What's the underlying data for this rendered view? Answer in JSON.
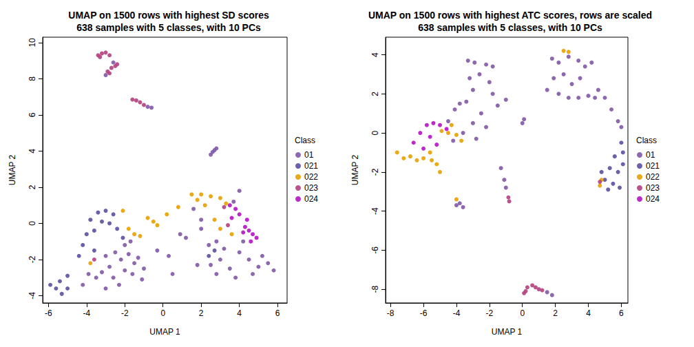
{
  "chart_data": [
    {
      "type": "scatter",
      "title": "UMAP on 1500 rows with highest SD scores\n638 samples with 5 classes, with 10 PCs",
      "x_label": "UMAP 1",
      "y_label": "UMAP 2",
      "legend_title": "Class",
      "legend": "right",
      "marker": "circle",
      "grid": false,
      "xlim": [
        -6.3,
        6.5
      ],
      "ylim": [
        -4.4,
        10.3
      ],
      "xticks": [
        -6,
        -4,
        -2,
        0,
        2,
        4,
        6
      ],
      "yticks": [
        -4,
        -2,
        0,
        2,
        4,
        6,
        8,
        10
      ],
      "series": [
        {
          "name": "01",
          "color": "#8258a6",
          "values": [
            [
              -2.6,
              8.9
            ],
            [
              -3.0,
              8.2
            ],
            [
              -0.8,
              6.45
            ],
            [
              -0.6,
              6.4
            ],
            [
              2.5,
              3.8
            ],
            [
              2.6,
              3.95
            ],
            [
              2.7,
              4.05
            ],
            [
              2.8,
              4.15
            ],
            [
              -3.0,
              -1.8
            ],
            [
              -2.5,
              -1.6
            ],
            [
              -2.2,
              -2.0
            ],
            [
              -1.8,
              -1.7
            ],
            [
              -1.5,
              -2.2
            ],
            [
              -2.8,
              -2.4
            ],
            [
              -3.2,
              -2.7
            ],
            [
              -2.6,
              -3.0
            ],
            [
              -2.0,
              -2.6
            ],
            [
              -1.3,
              -1.9
            ],
            [
              -2.3,
              -3.4
            ],
            [
              -3.0,
              -3.6
            ],
            [
              -3.5,
              -3.0
            ],
            [
              -1.6,
              -2.8
            ],
            [
              -1.0,
              -2.5
            ],
            [
              -4.2,
              -3.4
            ],
            [
              -3.9,
              -2.8
            ],
            [
              -2.0,
              -1.2
            ],
            [
              -1.7,
              -1.0
            ],
            [
              -1.1,
              -3.1
            ],
            [
              -0.3,
              -1.5
            ],
            [
              0.3,
              -1.8
            ],
            [
              0.9,
              -0.6
            ],
            [
              1.2,
              -0.8
            ],
            [
              1.8,
              -2.3
            ],
            [
              2.0,
              -0.3
            ],
            [
              2.4,
              -1.2
            ],
            [
              2.8,
              -1.0
            ],
            [
              3.2,
              -1.4
            ],
            [
              2.5,
              -2.3
            ],
            [
              2.8,
              -2.8
            ],
            [
              3.5,
              -2.5
            ],
            [
              4.0,
              -1.6
            ],
            [
              4.5,
              -2.0
            ],
            [
              5.0,
              -2.4
            ],
            [
              5.5,
              -2.2
            ],
            [
              5.8,
              -2.6
            ],
            [
              5.2,
              -1.8
            ],
            [
              4.7,
              -2.8
            ],
            [
              3.8,
              -3.0
            ],
            [
              3.0,
              -2.0
            ],
            [
              4.2,
              -1.0
            ],
            [
              2.0,
              0.2
            ],
            [
              1.6,
              0.8
            ],
            [
              3.7,
              1.2
            ],
            [
              4.0,
              1.8
            ],
            [
              0.5,
              -2.8
            ]
          ]
        },
        {
          "name": "021",
          "color": "#5b4fa0",
          "values": [
            [
              -3.4,
              0.6
            ],
            [
              -3.0,
              0.7
            ],
            [
              -2.6,
              0.5
            ],
            [
              -3.8,
              0.2
            ],
            [
              -3.2,
              0.1
            ],
            [
              -2.8,
              0.0
            ],
            [
              -4.0,
              -0.6
            ],
            [
              -3.6,
              -0.4
            ],
            [
              -4.2,
              -1.2
            ],
            [
              -4.4,
              -1.8
            ],
            [
              -3.6,
              -1.5
            ],
            [
              -5.0,
              -2.9
            ],
            [
              -5.4,
              -3.2
            ],
            [
              -5.6,
              -3.6
            ],
            [
              -5.9,
              -3.4
            ],
            [
              -5.3,
              -3.9
            ],
            [
              -5.0,
              -3.6
            ],
            [
              -2.4,
              -0.3
            ],
            [
              -2.1,
              -0.8
            ],
            [
              2.4,
              -1.8
            ],
            [
              2.7,
              -1.5
            ]
          ]
        },
        {
          "name": "022",
          "color": "#e8a000",
          "values": [
            [
              -2.1,
              0.7
            ],
            [
              -1.8,
              -0.3
            ],
            [
              -1.5,
              -0.6
            ],
            [
              -1.2,
              -0.7
            ],
            [
              -0.8,
              0.3
            ],
            [
              -0.5,
              0.1
            ],
            [
              -0.3,
              -0.1
            ],
            [
              0.2,
              0.5
            ],
            [
              0.8,
              0.9
            ],
            [
              1.5,
              1.6
            ],
            [
              2.0,
              1.6
            ],
            [
              2.5,
              1.5
            ],
            [
              3.0,
              1.4
            ],
            [
              3.3,
              1.1
            ],
            [
              2.2,
              1.0
            ],
            [
              2.7,
              0.2
            ],
            [
              3.0,
              -0.3
            ],
            [
              3.6,
              -0.6
            ],
            [
              1.8,
              1.3
            ],
            [
              -3.8,
              -2.2
            ]
          ]
        },
        {
          "name": "023",
          "color": "#b2407e",
          "values": [
            [
              -3.4,
              9.3
            ],
            [
              -3.2,
              9.4
            ],
            [
              -3.0,
              9.45
            ],
            [
              -2.8,
              9.3
            ],
            [
              -3.3,
              9.2
            ],
            [
              -2.4,
              8.8
            ],
            [
              -2.7,
              8.6
            ],
            [
              -2.9,
              8.4
            ],
            [
              -2.8,
              8.3
            ],
            [
              -2.5,
              8.7
            ],
            [
              -1.6,
              6.85
            ],
            [
              -1.4,
              6.8
            ],
            [
              -1.2,
              6.7
            ],
            [
              -1.0,
              6.55
            ],
            [
              3.2,
              0.9
            ],
            [
              3.4,
              -0.1
            ],
            [
              -3.6,
              -2.0
            ]
          ]
        },
        {
          "name": "024",
          "color": "#b514c4",
          "values": [
            [
              3.5,
              1.0
            ],
            [
              3.8,
              0.8
            ],
            [
              4.0,
              0.5
            ],
            [
              4.3,
              -0.2
            ],
            [
              4.5,
              -0.4
            ],
            [
              4.7,
              -0.6
            ],
            [
              4.9,
              -0.8
            ],
            [
              4.6,
              -1.0
            ],
            [
              4.2,
              -0.5
            ],
            [
              3.6,
              0.3
            ],
            [
              4.4,
              0.2
            ]
          ]
        }
      ]
    },
    {
      "type": "scatter",
      "title": "UMAP on 1500 rows with highest ATC scores, rows are scaled\n638 samples with 5 classes, with 10 PCs",
      "x_label": "UMAP 1",
      "y_label": "UMAP 2",
      "legend_title": "Class",
      "legend": "right",
      "marker": "circle",
      "grid": false,
      "xlim": [
        -8.3,
        6.4
      ],
      "ylim": [
        -8.7,
        4.9
      ],
      "xticks": [
        -8,
        -6,
        -4,
        -2,
        0,
        2,
        4,
        6
      ],
      "yticks": [
        -8,
        -6,
        -4,
        -2,
        0,
        2,
        4
      ],
      "series": [
        {
          "name": "01",
          "color": "#8258a6",
          "values": [
            [
              -3.3,
              3.7
            ],
            [
              -2.9,
              3.6
            ],
            [
              -2.2,
              3.5
            ],
            [
              -1.8,
              3.4
            ],
            [
              -2.6,
              3.0
            ],
            [
              -3.2,
              2.8
            ],
            [
              -2.0,
              2.6
            ],
            [
              -1.8,
              2.0
            ],
            [
              -3.0,
              2.2
            ],
            [
              -3.8,
              1.5
            ],
            [
              -4.1,
              1.2
            ],
            [
              -3.4,
              1.6
            ],
            [
              -2.5,
              1.0
            ],
            [
              -3.0,
              0.5
            ],
            [
              -2.2,
              0.3
            ],
            [
              -4.5,
              0.6
            ],
            [
              -3.6,
              0.0
            ],
            [
              -1.5,
              1.4
            ],
            [
              -1.0,
              1.7
            ],
            [
              -2.8,
              -0.3
            ],
            [
              -4.2,
              -0.4
            ],
            [
              1.8,
              3.8
            ],
            [
              2.2,
              3.6
            ],
            [
              2.8,
              3.9
            ],
            [
              3.4,
              3.7
            ],
            [
              3.8,
              3.4
            ],
            [
              4.2,
              3.6
            ],
            [
              1.9,
              2.8
            ],
            [
              2.5,
              3.0
            ],
            [
              3.0,
              2.5
            ],
            [
              3.5,
              2.8
            ],
            [
              2.2,
              2.0
            ],
            [
              2.8,
              1.8
            ],
            [
              3.4,
              1.8
            ],
            [
              4.0,
              1.9
            ],
            [
              4.6,
              2.2
            ],
            [
              5.0,
              1.8
            ],
            [
              5.4,
              1.2
            ],
            [
              5.8,
              0.6
            ],
            [
              6.0,
              0.3
            ],
            [
              1.5,
              2.2
            ],
            [
              4.4,
              1.8
            ],
            [
              -4.0,
              -3.7
            ],
            [
              -3.6,
              -3.8
            ],
            [
              -3.8,
              -3.6
            ],
            [
              -1.3,
              -1.8
            ],
            [
              -1.1,
              -2.4
            ],
            [
              -1.0,
              -2.8
            ],
            [
              0.0,
              0.5
            ],
            [
              0.1,
              0.7
            ],
            [
              1.5,
              -8.15
            ],
            [
              1.8,
              -8.3
            ]
          ]
        },
        {
          "name": "021",
          "color": "#5b4fa0",
          "values": [
            [
              6.0,
              -0.5
            ],
            [
              6.1,
              -1.0
            ],
            [
              5.6,
              -1.2
            ],
            [
              5.3,
              -1.8
            ],
            [
              5.8,
              -2.0
            ],
            [
              5.0,
              -2.4
            ],
            [
              5.5,
              -2.6
            ],
            [
              5.9,
              -2.8
            ],
            [
              5.2,
              -2.9
            ],
            [
              4.8,
              -2.0
            ],
            [
              6.1,
              -1.6
            ]
          ]
        },
        {
          "name": "022",
          "color": "#e8a000",
          "values": [
            [
              4.8,
              -2.4
            ],
            [
              4.7,
              -2.7
            ],
            [
              2.5,
              4.2
            ],
            [
              2.8,
              4.15
            ],
            [
              -7.6,
              -1.0
            ],
            [
              -7.2,
              -1.3
            ],
            [
              -6.8,
              -1.2
            ],
            [
              -6.4,
              -1.4
            ],
            [
              -6.0,
              -1.3
            ],
            [
              -5.6,
              -1.0
            ],
            [
              -5.2,
              -1.6
            ],
            [
              -5.0,
              -2.0
            ],
            [
              -4.9,
              0.1
            ],
            [
              -4.5,
              0.0
            ],
            [
              -4.0,
              -0.1
            ],
            [
              -3.7,
              -0.4
            ],
            [
              -4.3,
              0.4
            ],
            [
              -5.5,
              -1.4
            ],
            [
              -4.0,
              -3.4
            ]
          ]
        },
        {
          "name": "023",
          "color": "#b2407e",
          "values": [
            [
              4.7,
              -2.5
            ],
            [
              -0.8,
              -3.5
            ],
            [
              -0.85,
              -3.3
            ],
            [
              0.1,
              -8.2
            ],
            [
              0.3,
              -7.9
            ],
            [
              0.6,
              -7.8
            ],
            [
              1.0,
              -8.0
            ],
            [
              1.2,
              -8.05
            ],
            [
              0.2,
              -8.1
            ],
            [
              0.8,
              -7.9
            ]
          ]
        },
        {
          "name": "024",
          "color": "#b514c4",
          "values": [
            [
              -6.6,
              -0.5
            ],
            [
              -6.2,
              0.0
            ],
            [
              -5.8,
              0.4
            ],
            [
              -5.4,
              0.5
            ],
            [
              -5.0,
              0.4
            ],
            [
              -5.6,
              -0.2
            ],
            [
              -6.0,
              -0.8
            ],
            [
              -5.2,
              -0.6
            ],
            [
              -4.6,
              0.2
            ]
          ]
        }
      ]
    }
  ]
}
